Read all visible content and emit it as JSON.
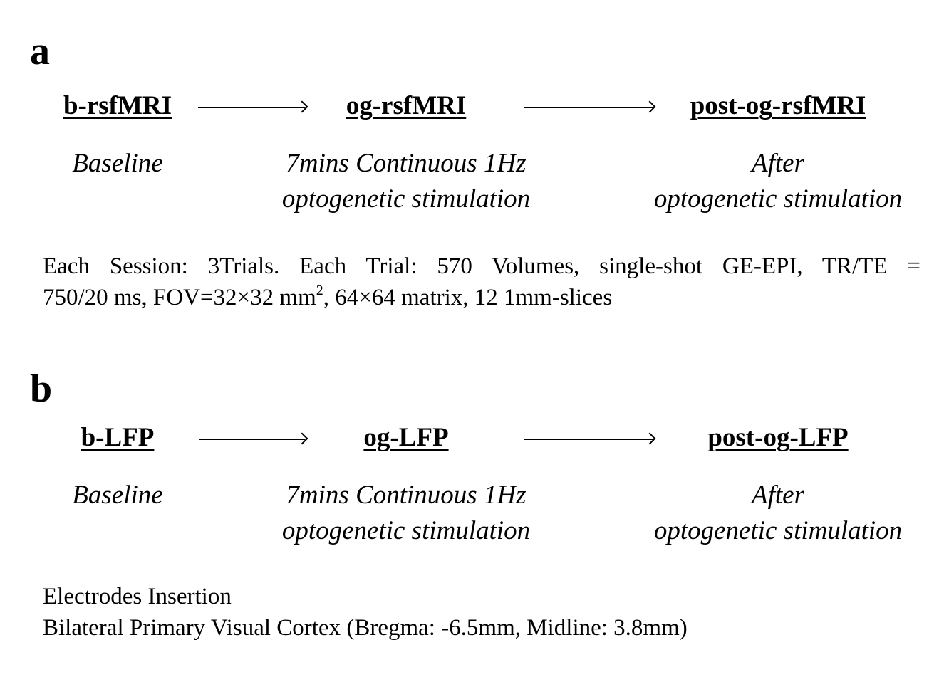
{
  "panel_a": {
    "label": "a",
    "stages": [
      {
        "title": "b-rsfMRI",
        "desc_line1": "Baseline",
        "desc_line2": ""
      },
      {
        "title": "og-rsfMRI",
        "desc_line1": "7mins Continuous 1Hz",
        "desc_line2": "optogenetic stimulation"
      },
      {
        "title": "post-og-rsfMRI",
        "desc_line1": "After",
        "desc_line2": "optogenetic stimulation"
      }
    ],
    "note_line1": "Each Session: 3Trials. Each Trial: 570 Volumes, single-shot GE-EPI, TR/TE =",
    "note_line2_pre": "750/20 ms, FOV=32×32 mm",
    "note_line2_sup": "2",
    "note_line2_post": ", 64×64 matrix, 12 1mm-slices"
  },
  "panel_b": {
    "label": "b",
    "stages": [
      {
        "title": "b-LFP",
        "desc_line1": "Baseline",
        "desc_line2": ""
      },
      {
        "title": "og-LFP",
        "desc_line1": "7mins Continuous 1Hz",
        "desc_line2": "optogenetic stimulation"
      },
      {
        "title": "post-og-LFP",
        "desc_line1": "After",
        "desc_line2": "optogenetic stimulation"
      }
    ],
    "note_heading": "Electrodes Insertion",
    "note_text": "Bilateral Primary Visual Cortex (Bregma: -6.5mm, Midline: 3.8mm)"
  }
}
